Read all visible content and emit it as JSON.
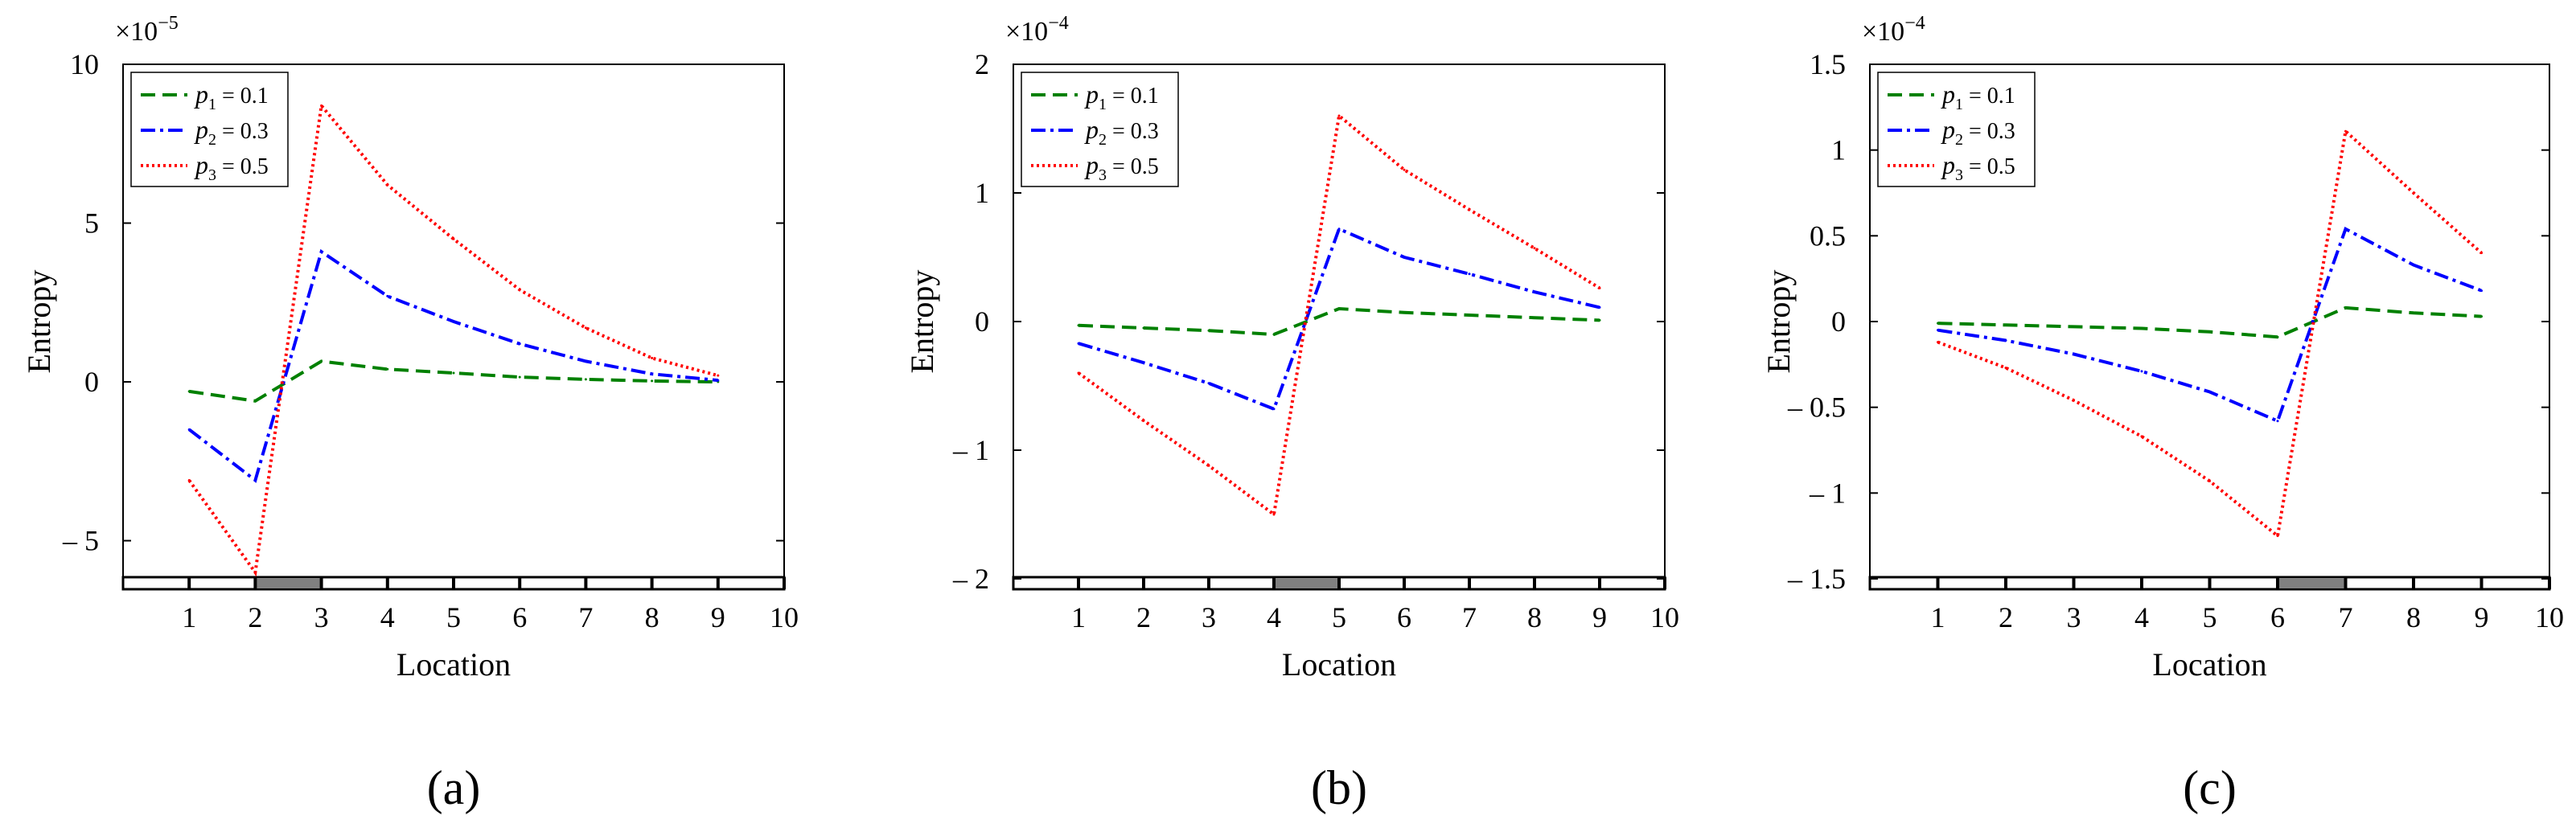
{
  "chart_data": [
    {
      "type": "line",
      "panel_label": "(a)",
      "xlabel": "Location",
      "ylabel": "Entropy",
      "scale_prefix": "×10",
      "scale_exponent": "−5",
      "xlim": [
        0,
        10
      ],
      "ylim": [
        -6.2,
        10
      ],
      "x_ticks": [
        1,
        2,
        3,
        4,
        5,
        6,
        7,
        8,
        9,
        10
      ],
      "y_ticks": [
        {
          "value": -5,
          "label": "– 5"
        },
        {
          "value": 0,
          "label": "0"
        },
        {
          "value": 5,
          "label": "5"
        },
        {
          "value": 10,
          "label": "10"
        }
      ],
      "highlight_interval": [
        2,
        3
      ],
      "x": [
        1,
        2,
        3,
        4,
        5,
        6,
        7,
        8,
        9
      ],
      "series": [
        {
          "name": "p1 = 0.1",
          "sym": "p",
          "sub": "1",
          "val": " = 0.1",
          "color": "#008000",
          "dash": "18,9",
          "values": [
            -0.3,
            -0.6,
            0.65,
            0.4,
            0.28,
            0.15,
            0.08,
            0.03,
            0.0
          ]
        },
        {
          "name": "p2 = 0.3",
          "sym": "p",
          "sub": "2",
          "val": " = 0.3",
          "color": "#0000ff",
          "dash": "18,6,4,6",
          "values": [
            -1.5,
            -3.1,
            4.1,
            2.7,
            1.9,
            1.2,
            0.65,
            0.25,
            0.05
          ]
        },
        {
          "name": "p3 = 0.5",
          "sym": "p",
          "sub": "3",
          "val": " = 0.5",
          "color": "#ff0000",
          "dash": "3,4",
          "values": [
            -3.1,
            -6.0,
            8.7,
            6.2,
            4.5,
            2.9,
            1.7,
            0.75,
            0.2
          ]
        }
      ]
    },
    {
      "type": "line",
      "panel_label": "(b)",
      "xlabel": "Location",
      "ylabel": "Entropy",
      "scale_prefix": "×10",
      "scale_exponent": "−4",
      "xlim": [
        0,
        10
      ],
      "ylim": [
        -2,
        2
      ],
      "x_ticks": [
        1,
        2,
        3,
        4,
        5,
        6,
        7,
        8,
        9,
        10
      ],
      "y_ticks": [
        {
          "value": -2,
          "label": "– 2"
        },
        {
          "value": -1,
          "label": "– 1"
        },
        {
          "value": 0,
          "label": "0"
        },
        {
          "value": 1,
          "label": "1"
        },
        {
          "value": 2,
          "label": "2"
        }
      ],
      "highlight_interval": [
        4,
        5
      ],
      "x": [
        1,
        2,
        3,
        4,
        5,
        6,
        7,
        8,
        9
      ],
      "series": [
        {
          "name": "p1 = 0.1",
          "sym": "p",
          "sub": "1",
          "val": " = 0.1",
          "color": "#008000",
          "dash": "18,9",
          "values": [
            -0.03,
            -0.05,
            -0.07,
            -0.1,
            0.1,
            0.07,
            0.05,
            0.03,
            0.01
          ]
        },
        {
          "name": "p2 = 0.3",
          "sym": "p",
          "sub": "2",
          "val": " = 0.3",
          "color": "#0000ff",
          "dash": "18,6,4,6",
          "values": [
            -0.17,
            -0.32,
            -0.48,
            -0.68,
            0.72,
            0.5,
            0.37,
            0.23,
            0.11
          ]
        },
        {
          "name": "p3 = 0.5",
          "sym": "p",
          "sub": "3",
          "val": " = 0.5",
          "color": "#ff0000",
          "dash": "3,4",
          "values": [
            -0.4,
            -0.77,
            -1.12,
            -1.5,
            1.6,
            1.18,
            0.87,
            0.57,
            0.26
          ]
        }
      ]
    },
    {
      "type": "line",
      "panel_label": "(c)",
      "xlabel": "Location",
      "ylabel": "Entropy",
      "scale_prefix": "×10",
      "scale_exponent": "−4",
      "xlim": [
        0,
        10
      ],
      "ylim": [
        -1.5,
        1.5
      ],
      "x_ticks": [
        1,
        2,
        3,
        4,
        5,
        6,
        7,
        8,
        9,
        10
      ],
      "y_ticks": [
        {
          "value": -1.5,
          "label": "– 1.5"
        },
        {
          "value": -1,
          "label": "– 1"
        },
        {
          "value": -0.5,
          "label": "– 0.5"
        },
        {
          "value": 0,
          "label": "0"
        },
        {
          "value": 0.5,
          "label": "0.5"
        },
        {
          "value": 1,
          "label": "1"
        },
        {
          "value": 1.5,
          "label": "1.5"
        }
      ],
      "highlight_interval": [
        6,
        7
      ],
      "x": [
        1,
        2,
        3,
        4,
        5,
        6,
        7,
        8,
        9
      ],
      "series": [
        {
          "name": "p1 = 0.1",
          "sym": "p",
          "sub": "1",
          "val": " = 0.1",
          "color": "#008000",
          "dash": "18,9",
          "values": [
            -0.01,
            -0.02,
            -0.03,
            -0.04,
            -0.06,
            -0.09,
            0.08,
            0.05,
            0.03
          ]
        },
        {
          "name": "p2 = 0.3",
          "sym": "p",
          "sub": "2",
          "val": " = 0.3",
          "color": "#0000ff",
          "dash": "18,6,4,6",
          "values": [
            -0.05,
            -0.11,
            -0.19,
            -0.29,
            -0.41,
            -0.58,
            0.54,
            0.33,
            0.18
          ]
        },
        {
          "name": "p3 = 0.5",
          "sym": "p",
          "sub": "3",
          "val": " = 0.5",
          "color": "#ff0000",
          "dash": "3,4",
          "values": [
            -0.12,
            -0.27,
            -0.46,
            -0.67,
            -0.93,
            -1.25,
            1.11,
            0.75,
            0.4
          ]
        }
      ]
    }
  ]
}
